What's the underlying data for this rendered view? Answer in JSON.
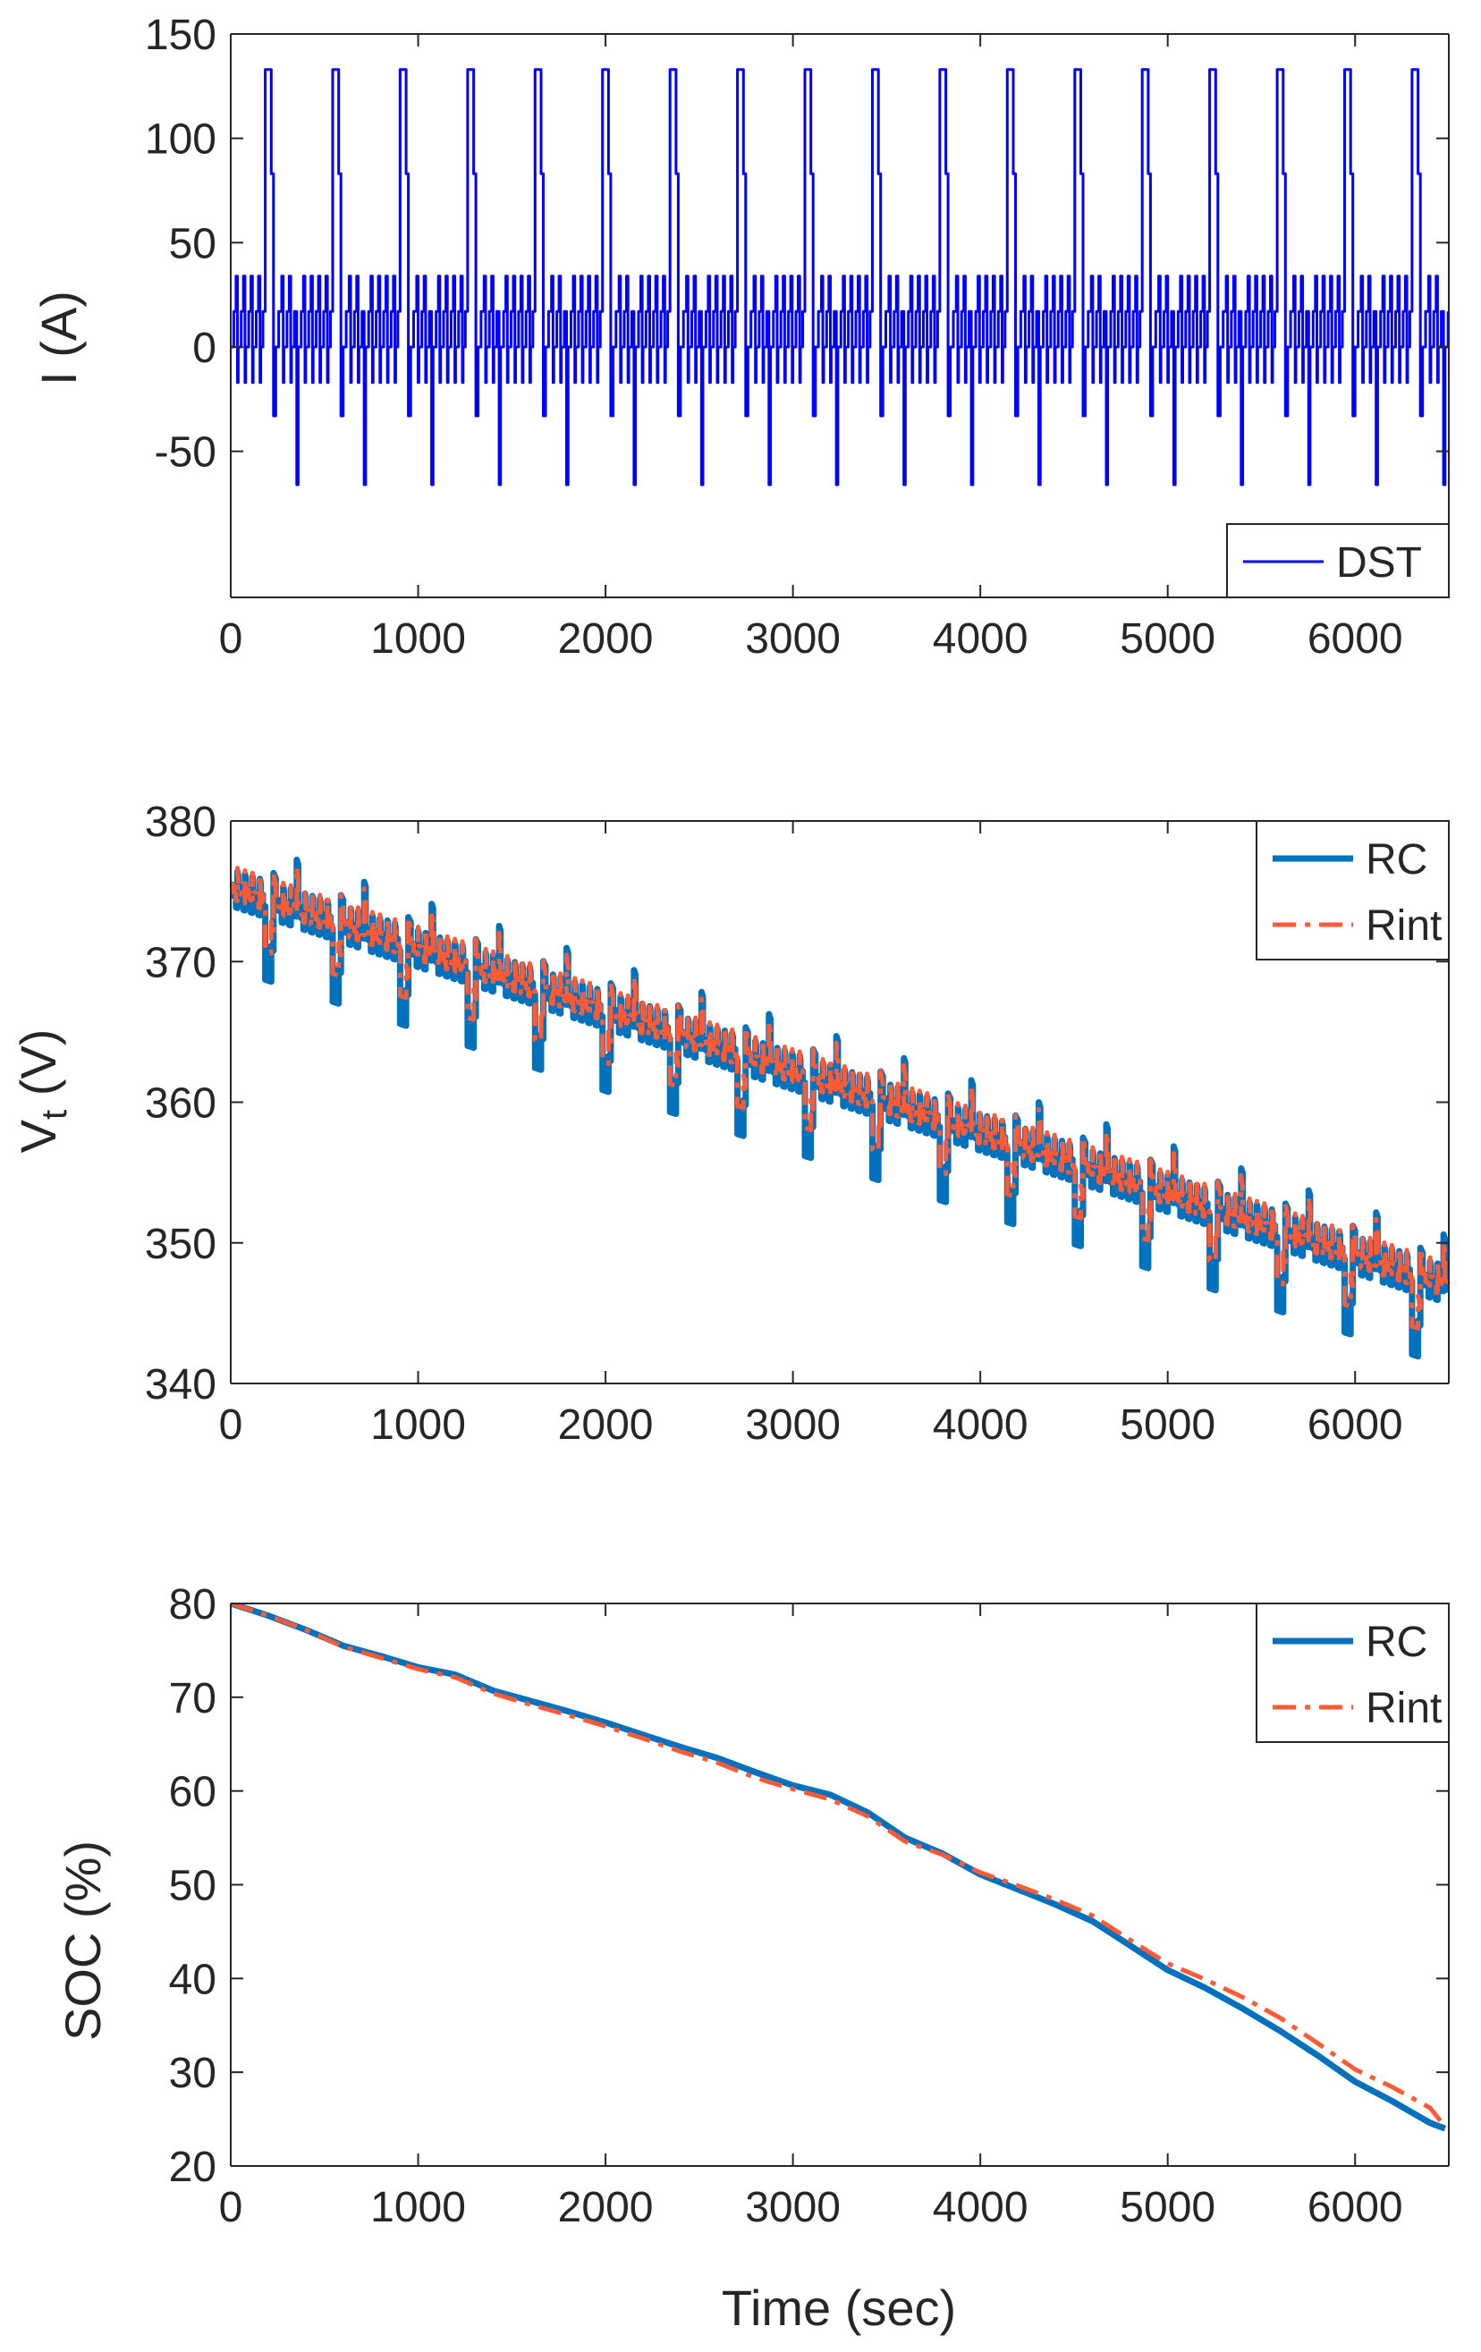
{
  "figure": {
    "xlabel": "Time (sec)"
  },
  "chart_data": [
    {
      "type": "line",
      "panel": "current",
      "title": "",
      "xlabel": "",
      "ylabel": "I (A)",
      "ylabel_sub": "",
      "ylabel_suffix": "",
      "xlim": [
        0,
        6500
      ],
      "ylim": [
        -120,
        150
      ],
      "xticks": [
        0,
        1000,
        2000,
        3000,
        4000,
        5000,
        6000
      ],
      "xtick_labels": [
        "0",
        "1000",
        "2000",
        "3000",
        "4000",
        "5000",
        "6000"
      ],
      "yticks": [
        -50,
        0,
        50,
        100,
        150
      ],
      "ytick_labels": [
        "-50",
        "0",
        "50",
        "100",
        "150"
      ],
      "legend_placement": "bottom-right",
      "grid": false,
      "cycle_period_sec": 360,
      "cycle_profile": {
        "t": [
          0,
          16,
          16,
          28,
          28,
          36,
          36,
          40,
          40,
          56,
          56,
          68,
          68,
          76,
          76,
          80,
          80,
          96,
          96,
          108,
          108,
          116,
          116,
          120,
          120,
          136,
          136,
          148,
          148,
          156,
          156,
          160,
          160,
          172,
          172,
          184,
          184,
          216,
          216,
          228,
          228,
          240,
          240,
          256,
          256,
          272,
          272,
          280,
          280,
          284,
          284,
          300,
          300,
          312,
          312,
          320,
          320,
          324,
          324,
          340,
          340,
          352,
          352,
          360
        ],
        "i": [
          0,
          0,
          17,
          17,
          34,
          34,
          -17,
          -17,
          0,
          0,
          17,
          17,
          34,
          34,
          -17,
          -17,
          0,
          0,
          17,
          17,
          34,
          34,
          -17,
          -17,
          0,
          0,
          17,
          17,
          34,
          34,
          -17,
          -17,
          0,
          0,
          17,
          17,
          133,
          133,
          83,
          83,
          -33,
          -33,
          0,
          0,
          17,
          17,
          34,
          34,
          -17,
          -17,
          0,
          0,
          17,
          17,
          34,
          34,
          -17,
          -17,
          0,
          0,
          17,
          17,
          -66,
          -66
        ]
      },
      "series": [
        {
          "name": "DST",
          "color": "#0000ff",
          "style": "solid",
          "width": 3,
          "source": "cycle_profile repeated every 360 s, 18 cycles (0–6480 s)"
        }
      ]
    },
    {
      "type": "line",
      "panel": "voltage",
      "title": "",
      "xlabel": "",
      "ylabel": "V",
      "ylabel_sub": "t",
      "ylabel_suffix": " (V)",
      "xlim": [
        0,
        6500
      ],
      "ylim": [
        340,
        380
      ],
      "xticks": [
        0,
        1000,
        2000,
        3000,
        4000,
        5000,
        6000
      ],
      "xtick_labels": [
        "0",
        "1000",
        "2000",
        "3000",
        "4000",
        "5000",
        "6000"
      ],
      "yticks": [
        340,
        350,
        360,
        370,
        380
      ],
      "ytick_labels": [
        "340",
        "350",
        "360",
        "370",
        "380"
      ],
      "legend_placement": "top-right",
      "grid": false,
      "trend": {
        "x": [
          0,
          6500
        ],
        "y": [
          375.5,
          347.2
        ]
      },
      "series": [
        {
          "name": "RC",
          "color": "#0072bd",
          "style": "solid",
          "width": 7,
          "gain_volts_per_amp": 0.045,
          "overshoot_volts": 0.3,
          "source": "trend minus gain times DST current"
        },
        {
          "name": "Rint",
          "color": "#ff5a36",
          "style": "dashdot",
          "width": 5,
          "gain_volts_per_amp": 0.03,
          "overshoot_volts": 0.8,
          "source": "trend minus gain times DST current"
        }
      ]
    },
    {
      "type": "line",
      "panel": "soc",
      "title": "",
      "xlabel": "Time (sec)",
      "ylabel": "SOC (%)",
      "ylabel_sub": "",
      "ylabel_suffix": "",
      "xlim": [
        0,
        6500
      ],
      "ylim": [
        20,
        80
      ],
      "xticks": [
        0,
        1000,
        2000,
        3000,
        4000,
        5000,
        6000
      ],
      "xtick_labels": [
        "0",
        "1000",
        "2000",
        "3000",
        "4000",
        "5000",
        "6000"
      ],
      "yticks": [
        20,
        30,
        40,
        50,
        60,
        70,
        80
      ],
      "ytick_labels": [
        "20",
        "30",
        "40",
        "50",
        "60",
        "70",
        "80"
      ],
      "legend_placement": "top-right",
      "grid": false,
      "series": [
        {
          "name": "RC",
          "color": "#0072bd",
          "style": "solid",
          "width": 7,
          "x": [
            0,
            200,
            400,
            600,
            800,
            1000,
            1200,
            1400,
            1600,
            1800,
            2000,
            2200,
            2400,
            2600,
            2800,
            3000,
            3200,
            3400,
            3600,
            3800,
            4000,
            4200,
            4400,
            4600,
            4800,
            5000,
            5200,
            5400,
            5600,
            5800,
            6000,
            6200,
            6400,
            6480
          ],
          "y": [
            80,
            78.7,
            77.2,
            75.5,
            74.4,
            73.2,
            72.4,
            70.7,
            69.6,
            68.5,
            67.3,
            66,
            64.7,
            63.5,
            62,
            60.6,
            59.6,
            57.7,
            55,
            53.3,
            51.1,
            49.5,
            47.9,
            46.1,
            43.5,
            40.9,
            39,
            36.8,
            34.4,
            31.8,
            29,
            26.9,
            24.6,
            24
          ]
        },
        {
          "name": "Rint",
          "color": "#ff5a36",
          "style": "dashdot",
          "width": 5,
          "x": [
            0,
            200,
            400,
            600,
            800,
            1000,
            1200,
            1400,
            1600,
            1800,
            2000,
            2200,
            2400,
            2600,
            2800,
            3000,
            3200,
            3400,
            3600,
            3800,
            4000,
            4200,
            4400,
            4600,
            4800,
            5000,
            5200,
            5400,
            5600,
            5800,
            6000,
            6200,
            6400,
            6480
          ],
          "y": [
            80,
            78.7,
            77.2,
            75.4,
            74.2,
            73,
            72.1,
            70.4,
            69.2,
            68.1,
            66.9,
            65.6,
            64.2,
            63,
            61.4,
            60.2,
            59.1,
            57.3,
            54.6,
            53.2,
            51.3,
            49.9,
            48.4,
            46.7,
            44.1,
            41.6,
            39.9,
            38,
            35.8,
            33.1,
            30.3,
            28.4,
            26.2,
            24.2
          ]
        }
      ]
    }
  ]
}
